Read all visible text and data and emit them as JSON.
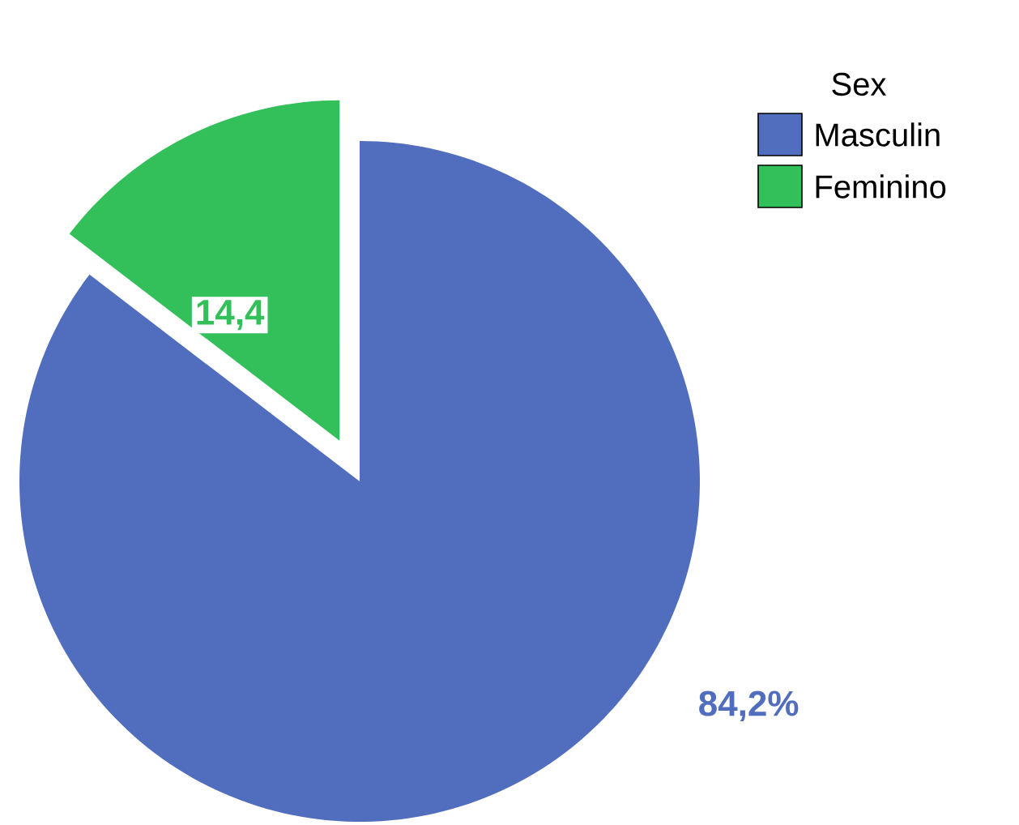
{
  "chart_data": {
    "type": "pie",
    "categories": [
      "Masculin",
      "Feminino"
    ],
    "values": [
      84.2,
      14.4
    ],
    "colors": [
      "#516dbd",
      "#33bf5a"
    ],
    "value_labels": [
      "84,2%",
      "14,4"
    ],
    "legend_title": "Sex",
    "legend": "top right"
  }
}
